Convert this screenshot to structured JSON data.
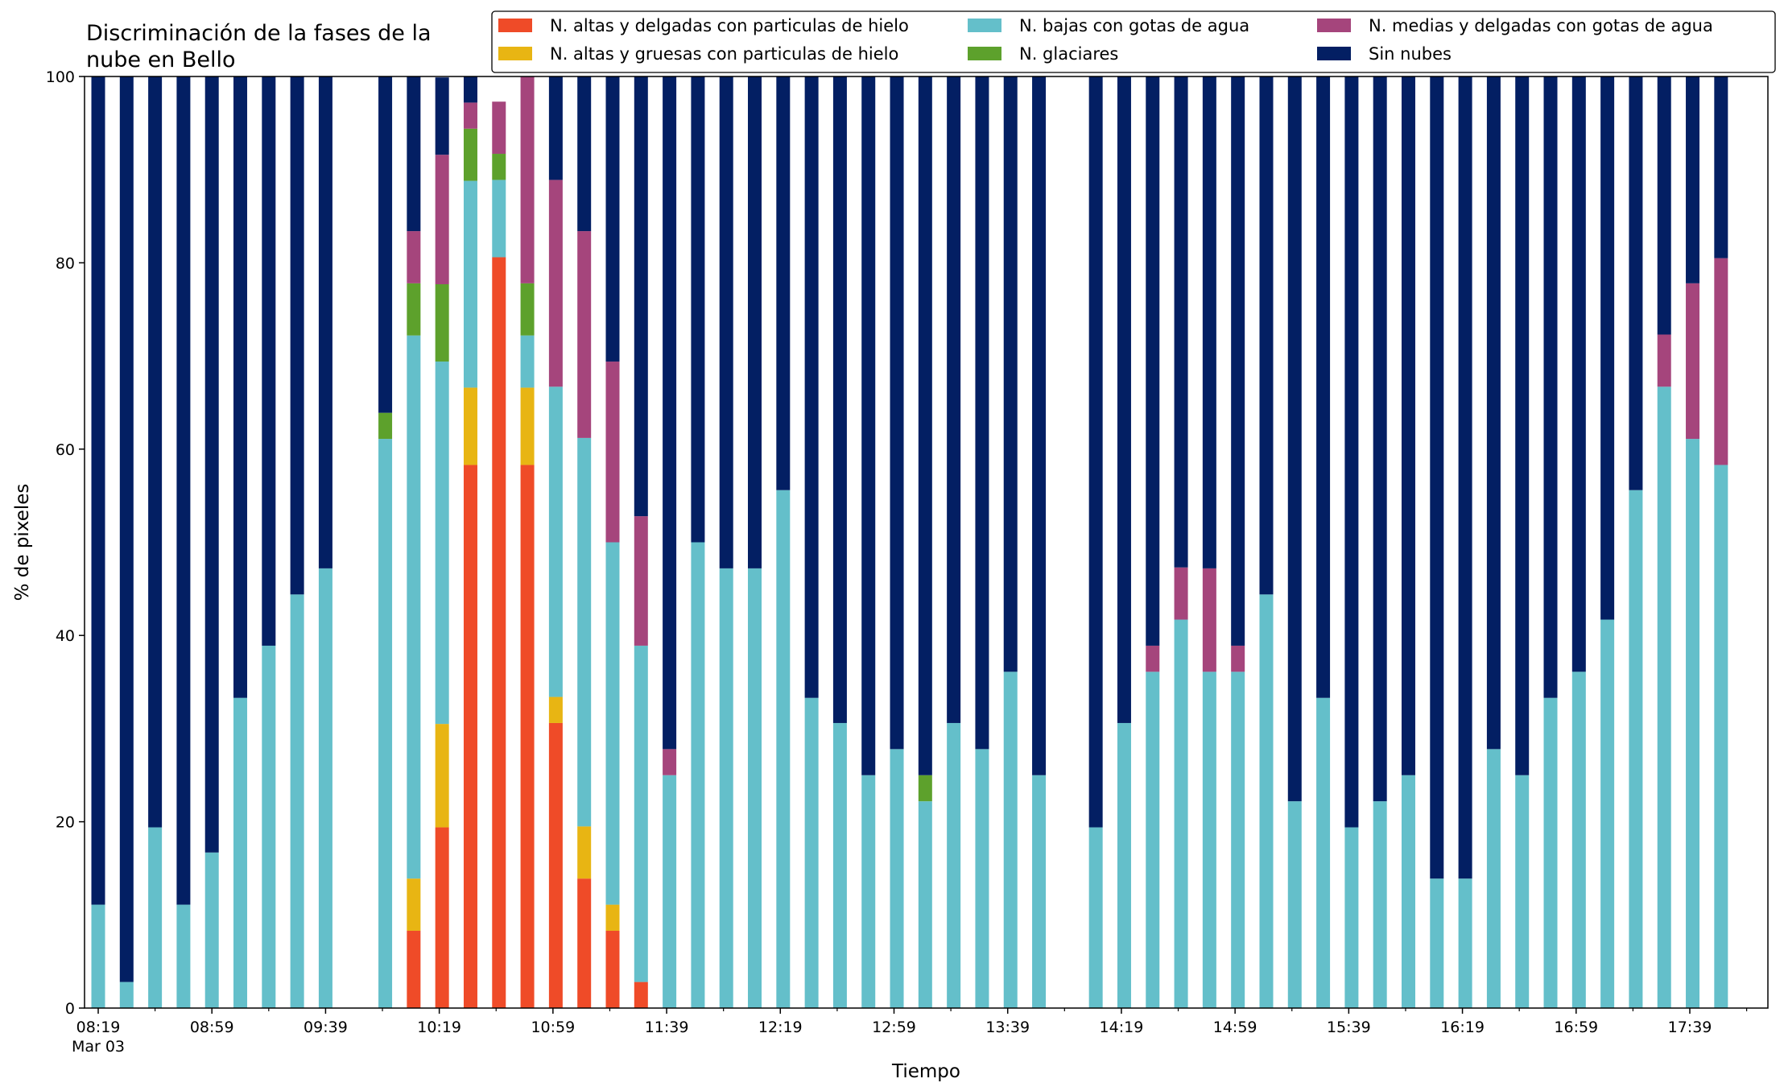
{
  "chart_data": {
    "type": "bar",
    "stacked": true,
    "title": "Discriminación de la fases de la\nnube en Bello",
    "xlabel": "Tiempo",
    "ylabel": "% de pixeles",
    "ylim": [
      0,
      100
    ],
    "yticks": [
      0,
      20,
      40,
      60,
      80,
      100
    ],
    "grid": false,
    "legend_position": "top-right",
    "x_tick_labels": [
      {
        "label": "08:19",
        "sublabel": "Mar 03",
        "time": "08:19"
      },
      {
        "label": "08:59",
        "time": "08:59"
      },
      {
        "label": "09:39",
        "time": "09:39"
      },
      {
        "label": "10:19",
        "time": "10:19"
      },
      {
        "label": "10:59",
        "time": "10:59"
      },
      {
        "label": "11:39",
        "time": "11:39"
      },
      {
        "label": "12:19",
        "time": "12:19"
      },
      {
        "label": "12:59",
        "time": "12:59"
      },
      {
        "label": "13:39",
        "time": "13:39"
      },
      {
        "label": "14:19",
        "time": "14:19"
      },
      {
        "label": "14:59",
        "time": "14:59"
      },
      {
        "label": "15:39",
        "time": "15:39"
      },
      {
        "label": "16:19",
        "time": "16:19"
      },
      {
        "label": "16:59",
        "time": "16:59"
      },
      {
        "label": "17:39",
        "time": "17:39"
      }
    ],
    "categories": [
      "08:19",
      "08:29",
      "08:39",
      "08:49",
      "08:59",
      "09:09",
      "09:19",
      "09:29",
      "09:39",
      "10:00",
      "10:10",
      "10:20",
      "10:30",
      "10:40",
      "10:50",
      "11:00",
      "11:10",
      "11:20",
      "11:30",
      "11:40",
      "11:50",
      "12:00",
      "12:10",
      "12:20",
      "12:30",
      "12:40",
      "12:50",
      "13:00",
      "13:10",
      "13:20",
      "13:30",
      "13:40",
      "13:50",
      "14:10",
      "14:20",
      "14:30",
      "14:40",
      "14:50",
      "15:00",
      "15:10",
      "15:20",
      "15:30",
      "15:40",
      "15:50",
      "16:00",
      "16:10",
      "16:20",
      "16:30",
      "16:40",
      "16:50",
      "17:00",
      "17:10",
      "17:20",
      "17:30",
      "17:40",
      "17:50"
    ],
    "series": [
      {
        "name": "N. altas y delgadas con particulas de hielo",
        "color": "#ef4b28",
        "values": [
          0,
          0,
          0,
          0,
          0,
          0,
          0,
          0,
          0,
          0,
          8.3,
          19.4,
          58.3,
          80.6,
          58.3,
          30.6,
          13.9,
          8.3,
          2.8,
          0,
          0,
          0,
          0,
          0,
          0,
          0,
          0,
          0,
          0,
          0,
          0,
          0,
          0,
          0,
          0,
          0,
          0,
          0,
          0,
          0,
          0,
          0,
          0,
          0,
          0,
          0,
          0,
          0,
          0,
          0,
          0,
          0,
          0,
          0,
          0,
          0
        ]
      },
      {
        "name": "N. altas y gruesas con particulas de hielo",
        "color": "#e8b513",
        "values": [
          0,
          0,
          0,
          0,
          0,
          0,
          0,
          0,
          0,
          0,
          5.6,
          11.1,
          8.3,
          0,
          8.3,
          2.8,
          5.6,
          2.8,
          0,
          0,
          0,
          0,
          0,
          0,
          0,
          0,
          0,
          0,
          0,
          0,
          0,
          0,
          0,
          0,
          0,
          0,
          0,
          0,
          0,
          0,
          0,
          0,
          0,
          0,
          0,
          0,
          0,
          0,
          0,
          0,
          0,
          0,
          0,
          0,
          0,
          0
        ]
      },
      {
        "name": "N. bajas con gotas de agua",
        "color": "#64bfca",
        "values": [
          11.1,
          2.8,
          19.4,
          11.1,
          16.7,
          33.3,
          38.9,
          44.4,
          47.2,
          61.1,
          58.3,
          38.9,
          22.2,
          8.3,
          5.6,
          33.3,
          41.7,
          38.9,
          36.1,
          25.0,
          50.0,
          47.2,
          47.2,
          55.6,
          33.3,
          30.6,
          25.0,
          27.8,
          22.2,
          30.6,
          27.8,
          36.1,
          25.0,
          19.4,
          30.6,
          36.1,
          41.7,
          36.1,
          36.1,
          44.4,
          22.2,
          33.3,
          19.4,
          22.2,
          25.0,
          13.9,
          13.9,
          27.8,
          25.0,
          33.3,
          36.1,
          41.7,
          55.6,
          66.7,
          61.1,
          58.3
        ]
      },
      {
        "name": "N. glaciares",
        "color": "#5da12c",
        "values": [
          0,
          0,
          0,
          0,
          0,
          0,
          0,
          0,
          0,
          2.8,
          5.6,
          8.3,
          5.6,
          2.8,
          5.6,
          0,
          0,
          0,
          0,
          0,
          0,
          0,
          0,
          0,
          0,
          0,
          0,
          0,
          2.8,
          0,
          0,
          0,
          0,
          0,
          0,
          0,
          0,
          0,
          0,
          0,
          0,
          0,
          0,
          0,
          0,
          0,
          0,
          0,
          0,
          0,
          0,
          0,
          0,
          0,
          0,
          0
        ]
      },
      {
        "name": "N. medias y delgadas con gotas de agua",
        "color": "#a5457c",
        "values": [
          0,
          0,
          0,
          0,
          0,
          0,
          0,
          0,
          0,
          0,
          5.6,
          13.9,
          2.8,
          5.6,
          22.2,
          22.2,
          22.2,
          19.4,
          13.9,
          2.8,
          0,
          0,
          0,
          0,
          0,
          0,
          0,
          0,
          0,
          0,
          0,
          0,
          0,
          0,
          0,
          2.8,
          5.6,
          11.1,
          2.8,
          0,
          0,
          0,
          0,
          0,
          0,
          0,
          0,
          0,
          0,
          0,
          0,
          0,
          0,
          5.6,
          16.7,
          22.2
        ]
      },
      {
        "name": "Sin nubes",
        "color": "#031f63",
        "values": [
          88.9,
          97.2,
          80.6,
          88.9,
          83.3,
          66.7,
          61.1,
          55.6,
          52.8,
          36.1,
          16.7,
          8.3,
          2.8,
          0,
          0,
          11.1,
          16.6,
          30.6,
          47.2,
          72.2,
          50.0,
          52.8,
          52.8,
          44.4,
          66.7,
          69.4,
          75.0,
          72.2,
          75.0,
          69.4,
          72.2,
          63.9,
          75.0,
          80.6,
          69.4,
          61.1,
          52.7,
          52.8,
          61.1,
          55.6,
          77.8,
          66.7,
          80.6,
          77.8,
          75.0,
          86.1,
          86.1,
          72.2,
          75.0,
          66.7,
          63.9,
          58.3,
          44.4,
          27.7,
          22.2,
          19.5
        ]
      }
    ]
  }
}
